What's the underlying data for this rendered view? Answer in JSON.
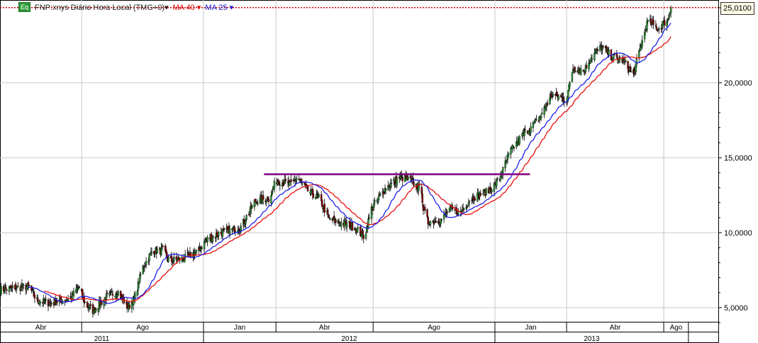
{
  "legend": {
    "badge": "Eq",
    "title": "FNP:xnys Diário Hora Local (TMG+0)▾",
    "ma40": "MA 40 ▾",
    "ma25": "MA 25 ▾"
  },
  "last_price_label": "25,0100",
  "colors": {
    "up": "#2f9e3a",
    "down": "#8b0000",
    "ma40": "#e81010",
    "ma25": "#2020e8",
    "resistance": "#800080",
    "last_price_line": "#cc0000",
    "grid": "#c8c8c8"
  },
  "chart_data": {
    "type": "candlestick",
    "title": "FNP:xnys Diário Hora Local (TMG+0)",
    "y_ticks": [
      "5,0000",
      "10,0000",
      "15,0000",
      "20,0000"
    ],
    "y_tick_values": [
      5,
      10,
      15,
      20
    ],
    "ylim": [
      3.8,
      25.5
    ],
    "xlim": [
      "2011-04-21",
      "2013-09-01"
    ],
    "month_labels": [
      {
        "label": "Abr",
        "start": "2011-04-01",
        "end": "2011-08-01"
      },
      {
        "label": "Ago",
        "start": "2011-08-01",
        "end": "2012-01-01"
      },
      {
        "label": "Jan",
        "start": "2012-01-01",
        "end": "2012-04-01"
      },
      {
        "label": "Abr",
        "start": "2012-04-01",
        "end": "2012-08-01"
      },
      {
        "label": "Ago",
        "start": "2012-08-01",
        "end": "2013-01-01"
      },
      {
        "label": "Jan",
        "start": "2013-01-01",
        "end": "2013-04-01"
      },
      {
        "label": "Abr",
        "start": "2013-04-01",
        "end": "2013-08-01"
      },
      {
        "label": "Ago",
        "start": "2013-08-01",
        "end": "2013-09-01"
      }
    ],
    "year_labels": [
      {
        "label": "2011",
        "start": "2011-01-01",
        "end": "2012-01-01"
      },
      {
        "label": "2012",
        "start": "2012-01-01",
        "end": "2013-01-01"
      },
      {
        "label": "2013",
        "start": "2013-01-01",
        "end": "2013-09-01"
      }
    ],
    "close_path": [
      [
        "2011-04-21",
        6.2
      ],
      [
        "2011-05-27",
        6.4
      ],
      [
        "2011-06-05",
        5.5
      ],
      [
        "2011-06-22",
        5.3
      ],
      [
        "2011-07-10",
        5.5
      ],
      [
        "2011-07-19",
        5.7
      ],
      [
        "2011-07-28",
        6.4
      ],
      [
        "2011-08-06",
        5.2
      ],
      [
        "2011-08-15",
        4.8
      ],
      [
        "2011-09-01",
        5.7
      ],
      [
        "2011-09-15",
        6.1
      ],
      [
        "2011-09-28",
        5.0
      ],
      [
        "2011-10-07",
        5.7
      ],
      [
        "2011-10-16",
        7.6
      ],
      [
        "2011-10-29",
        8.8
      ],
      [
        "2011-11-11",
        8.8
      ],
      [
        "2011-11-20",
        8.1
      ],
      [
        "2011-12-08",
        8.3
      ],
      [
        "2011-12-26",
        8.8
      ],
      [
        "2012-01-04",
        9.5
      ],
      [
        "2012-01-21",
        9.95
      ],
      [
        "2012-02-17",
        10.4
      ],
      [
        "2012-03-06",
        12.1
      ],
      [
        "2012-03-24",
        12.3
      ],
      [
        "2012-04-01",
        13.5
      ],
      [
        "2012-04-19",
        13.2
      ],
      [
        "2012-04-28",
        13.7
      ],
      [
        "2012-05-11",
        12.8
      ],
      [
        "2012-05-25",
        12.3
      ],
      [
        "2012-06-07",
        10.9
      ],
      [
        "2012-06-20",
        10.7
      ],
      [
        "2012-07-08",
        10.4
      ],
      [
        "2012-07-21",
        9.7
      ],
      [
        "2012-07-30",
        11.6
      ],
      [
        "2012-08-17",
        13.0
      ],
      [
        "2012-09-04",
        13.7
      ],
      [
        "2012-09-17",
        13.5
      ],
      [
        "2012-10-01",
        12.8
      ],
      [
        "2012-10-03",
        11.6
      ],
      [
        "2012-10-09",
        10.7
      ],
      [
        "2012-10-27",
        10.9
      ],
      [
        "2012-11-05",
        11.6
      ],
      [
        "2012-11-18",
        11.3
      ],
      [
        "2012-12-02",
        12.3
      ],
      [
        "2012-12-24",
        12.8
      ],
      [
        "2013-01-06",
        13.5
      ],
      [
        "2013-01-20",
        15.4
      ],
      [
        "2013-02-06",
        16.6
      ],
      [
        "2013-02-24",
        17.5
      ],
      [
        "2013-03-14",
        19.2
      ],
      [
        "2013-04-01",
        18.9
      ],
      [
        "2013-04-09",
        21.0
      ],
      [
        "2013-04-23",
        20.8
      ],
      [
        "2013-05-02",
        21.7
      ],
      [
        "2013-05-15",
        22.4
      ],
      [
        "2013-05-28",
        21.7
      ],
      [
        "2013-06-11",
        21.5
      ],
      [
        "2013-06-24",
        20.5
      ],
      [
        "2013-07-03",
        22.4
      ],
      [
        "2013-07-12",
        24.1
      ],
      [
        "2013-07-25",
        23.6
      ],
      [
        "2013-08-07",
        24.3
      ],
      [
        "2013-08-10",
        25.01
      ]
    ],
    "moving_averages": [
      {
        "name": "MA 40",
        "period": 40
      },
      {
        "name": "MA 25",
        "period": 25
      }
    ],
    "resistance_line": {
      "start": "2012-03-17",
      "end": "2013-02-14",
      "value": 13.9
    },
    "last_price": 25.01,
    "grid": true
  }
}
